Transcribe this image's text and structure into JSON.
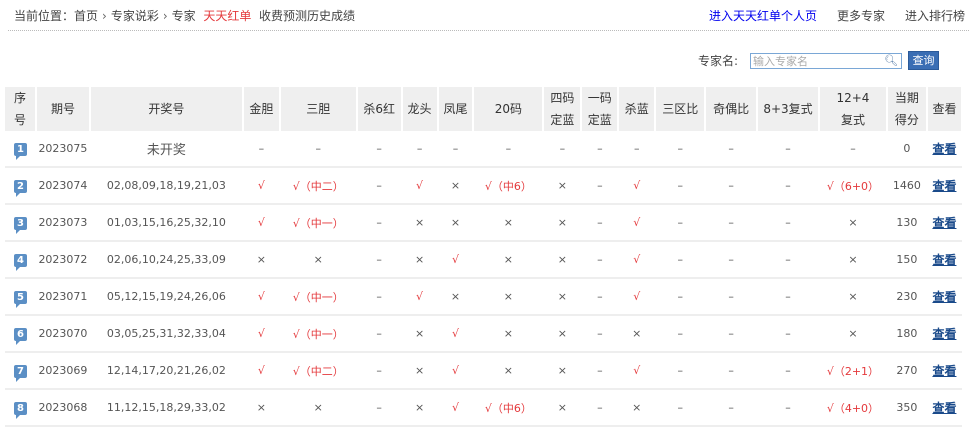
{
  "breadcrumb": {
    "prefix": "当前位置：",
    "home": "首页",
    "section": "专家说彩",
    "expert_label": "专家",
    "expert_name": "天天红单",
    "suffix": "收费预测历史成绩",
    "sep": "›"
  },
  "top_links": [
    "进入天天红单个人页",
    "更多专家",
    "进入排行榜"
  ],
  "search": {
    "label": "专家名:",
    "placeholder": "输入专家名",
    "button": "查询",
    "icon": "magnifier-icon"
  },
  "table": {
    "headers": [
      "序号",
      "期号",
      "开奖号",
      "金胆",
      "三胆",
      "杀6红",
      "龙头",
      "凤尾",
      "20码",
      "四码定蓝",
      "一码定蓝",
      "杀蓝",
      "三区比",
      "奇偶比",
      "8+3复式",
      "12+4复式",
      "当期得分",
      "查看"
    ],
    "rows": [
      {
        "no": "1",
        "issue": "2023075",
        "numbers": "未开奖",
        "cells": [
          "–",
          "–",
          "–",
          "–",
          "–",
          "–",
          "–",
          "–",
          "–",
          "–",
          "–",
          "–",
          "–"
        ],
        "score": "0",
        "view": "查看"
      },
      {
        "no": "2",
        "issue": "2023074",
        "numbers": "02,08,09,18,19,21,03",
        "cells": [
          "√",
          "√（中二）",
          "–",
          "√",
          "×",
          "√（中6）",
          "×",
          "–",
          "√",
          "–",
          "–",
          "–",
          "√（6+0）"
        ],
        "score": "1460",
        "view": "查看"
      },
      {
        "no": "3",
        "issue": "2023073",
        "numbers": "01,03,15,16,25,32,10",
        "cells": [
          "√",
          "√（中一）",
          "–",
          "×",
          "×",
          "×",
          "×",
          "–",
          "√",
          "–",
          "–",
          "–",
          "×"
        ],
        "score": "130",
        "view": "查看"
      },
      {
        "no": "4",
        "issue": "2023072",
        "numbers": "02,06,10,24,25,33,09",
        "cells": [
          "×",
          "×",
          "–",
          "×",
          "√",
          "×",
          "×",
          "–",
          "√",
          "–",
          "–",
          "–",
          "×"
        ],
        "score": "150",
        "view": "查看"
      },
      {
        "no": "5",
        "issue": "2023071",
        "numbers": "05,12,15,19,24,26,06",
        "cells": [
          "√",
          "√（中一）",
          "–",
          "√",
          "×",
          "×",
          "×",
          "–",
          "√",
          "–",
          "–",
          "–",
          "×"
        ],
        "score": "230",
        "view": "查看"
      },
      {
        "no": "6",
        "issue": "2023070",
        "numbers": "03,05,25,31,32,33,04",
        "cells": [
          "√",
          "√（中一）",
          "–",
          "×",
          "√",
          "×",
          "×",
          "–",
          "×",
          "–",
          "–",
          "–",
          "×"
        ],
        "score": "180",
        "view": "查看"
      },
      {
        "no": "7",
        "issue": "2023069",
        "numbers": "12,14,17,20,21,26,02",
        "cells": [
          "√",
          "√（中二）",
          "–",
          "×",
          "√",
          "×",
          "×",
          "–",
          "√",
          "–",
          "–",
          "–",
          "√（2+1）"
        ],
        "score": "270",
        "view": "查看"
      },
      {
        "no": "8",
        "issue": "2023068",
        "numbers": "11,12,15,18,29,33,02",
        "cells": [
          "×",
          "×",
          "–",
          "×",
          "√",
          "√（中6）",
          "×",
          "–",
          "×",
          "–",
          "–",
          "–",
          "√（4+0）"
        ],
        "score": "350",
        "view": "查看"
      }
    ]
  },
  "colors": {
    "hit": "#e4393c",
    "link": "#0000ee",
    "accent": "#3a6eb4"
  }
}
